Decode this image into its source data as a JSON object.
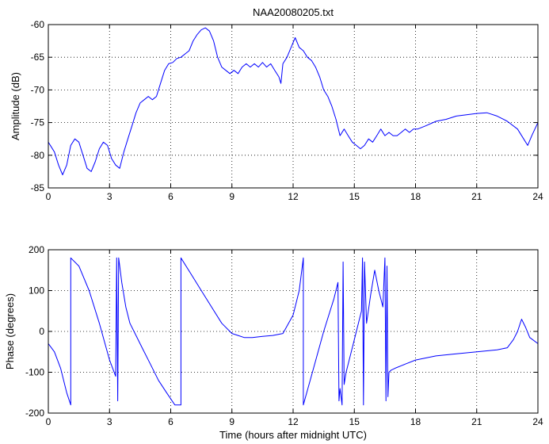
{
  "figure_title": "NAA20080205.txt",
  "colors": {
    "line": "#0000ff",
    "axis": "#000000",
    "grid": "#000000",
    "background": "#ffffff"
  },
  "chart_data": [
    {
      "type": "line",
      "title": "NAA20080205.txt",
      "xlabel": "",
      "ylabel": "Amplitude (dB)",
      "xlim": [
        0,
        24
      ],
      "ylim": [
        -85,
        -60
      ],
      "xticks": [
        0,
        3,
        6,
        9,
        12,
        15,
        18,
        21,
        24
      ],
      "yticks": [
        -85,
        -80,
        -75,
        -70,
        -65,
        -60
      ],
      "grid": true,
      "series": [
        {
          "color": "#0000ff",
          "x": [
            0,
            0.3,
            0.5,
            0.7,
            0.9,
            1.1,
            1.3,
            1.5,
            1.7,
            1.9,
            2.1,
            2.3,
            2.5,
            2.7,
            2.9,
            3.1,
            3.3,
            3.5,
            3.7,
            3.9,
            4.1,
            4.3,
            4.5,
            4.7,
            4.9,
            5.1,
            5.3,
            5.5,
            5.7,
            5.9,
            6.1,
            6.3,
            6.5,
            6.7,
            6.9,
            7.1,
            7.3,
            7.5,
            7.7,
            7.9,
            8.1,
            8.3,
            8.5,
            8.7,
            8.9,
            9.1,
            9.3,
            9.5,
            9.7,
            9.9,
            10.1,
            10.3,
            10.5,
            10.7,
            10.9,
            11.1,
            11.3,
            11.4,
            11.5,
            11.7,
            11.9,
            12.1,
            12.3,
            12.5,
            12.7,
            12.9,
            13.1,
            13.3,
            13.5,
            13.7,
            13.9,
            14.1,
            14.3,
            14.5,
            14.7,
            14.9,
            15.1,
            15.3,
            15.5,
            15.7,
            15.9,
            16.1,
            16.3,
            16.5,
            16.7,
            16.9,
            17.1,
            17.3,
            17.5,
            17.7,
            17.9,
            18.1,
            18.5,
            19,
            19.5,
            20,
            20.5,
            21,
            21.5,
            22,
            22.5,
            23,
            23.3,
            23.5,
            23.7,
            24
          ],
          "y": [
            -78,
            -79.5,
            -81.5,
            -83,
            -81.5,
            -78.5,
            -77.5,
            -78,
            -80,
            -82,
            -82.5,
            -81,
            -79,
            -78,
            -78.5,
            -80.5,
            -81.5,
            -82,
            -79.5,
            -77.5,
            -75.5,
            -73.5,
            -72,
            -71.5,
            -71,
            -71.5,
            -71,
            -69,
            -67,
            -66,
            -65.8,
            -65.2,
            -65,
            -64.5,
            -64,
            -62.5,
            -61.5,
            -60.8,
            -60.5,
            -61,
            -62.5,
            -65,
            -66.5,
            -67,
            -67.5,
            -67,
            -67.5,
            -66.5,
            -66,
            -66.5,
            -66,
            -66.5,
            -65.8,
            -66.5,
            -66,
            -67,
            -68,
            -69,
            -66,
            -65,
            -63.5,
            -62,
            -63.5,
            -64,
            -65,
            -65.5,
            -66.5,
            -68,
            -70,
            -71,
            -72.5,
            -74.5,
            -77,
            -76,
            -77,
            -78,
            -78.5,
            -79,
            -78.5,
            -77.5,
            -78,
            -77,
            -76,
            -77,
            -76.5,
            -77,
            -77,
            -76.5,
            -76,
            -76.5,
            -76,
            -76,
            -75.5,
            -74.8,
            -74.5,
            -74,
            -73.8,
            -73.6,
            -73.5,
            -74,
            -74.8,
            -76,
            -77.5,
            -78.5,
            -77,
            -75
          ]
        }
      ]
    },
    {
      "type": "line",
      "title": "",
      "xlabel": "Time (hours after midnight UTC)",
      "ylabel": "Phase (degrees)",
      "xlim": [
        0,
        24
      ],
      "ylim": [
        -200,
        200
      ],
      "xticks": [
        0,
        3,
        6,
        9,
        12,
        15,
        18,
        21,
        24
      ],
      "yticks": [
        -200,
        -100,
        0,
        100,
        200
      ],
      "grid": true,
      "series": [
        {
          "color": "#0000ff",
          "x": [
            0,
            0.3,
            0.6,
            0.9,
            1.1,
            1.1,
            1.5,
            2,
            2.5,
            3,
            3.3,
            3.35,
            3.4,
            3.45,
            3.5,
            3.6,
            3.8,
            4,
            4.3,
            4.6,
            5,
            5.4,
            5.8,
            6.2,
            6.5,
            6.5,
            7,
            7.5,
            8,
            8.5,
            9,
            9.3,
            9.6,
            10,
            10.5,
            11,
            11.5,
            12,
            12.3,
            12.5,
            12.5,
            13,
            13.5,
            14,
            14.2,
            14.25,
            14.3,
            14.4,
            14.45,
            14.5,
            14.6,
            14.8,
            15,
            15.2,
            15.35,
            15.4,
            15.45,
            15.5,
            15.6,
            15.8,
            16,
            16.2,
            16.4,
            16.5,
            16.55,
            16.6,
            16.65,
            16.7,
            16.8,
            17,
            17.5,
            18,
            19,
            20,
            21,
            22,
            22.5,
            22.8,
            23,
            23.2,
            23.4,
            23.6,
            24
          ],
          "y": [
            -30,
            -50,
            -90,
            -150,
            -180,
            180,
            160,
            100,
            20,
            -70,
            -110,
            180,
            -170,
            180,
            160,
            120,
            60,
            20,
            -10,
            -40,
            -80,
            -120,
            -150,
            -180,
            -180,
            180,
            140,
            100,
            60,
            20,
            -5,
            -10,
            -15,
            -15,
            -12,
            -10,
            -5,
            40,
            100,
            180,
            -180,
            -90,
            0,
            80,
            120,
            -170,
            -140,
            -180,
            170,
            -130,
            -100,
            -60,
            -20,
            20,
            50,
            180,
            -180,
            170,
            20,
            90,
            150,
            100,
            60,
            180,
            -170,
            160,
            -160,
            -100,
            -95,
            -90,
            -80,
            -70,
            -60,
            -55,
            -50,
            -45,
            -40,
            -20,
            0,
            30,
            10,
            -15,
            -30
          ]
        }
      ]
    }
  ]
}
